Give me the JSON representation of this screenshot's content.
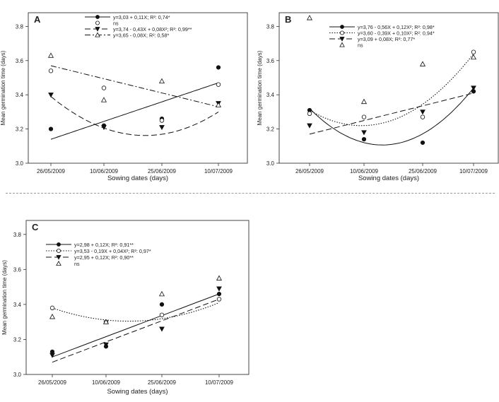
{
  "figure": {
    "separator": "dashed-line"
  },
  "chart_data": [
    {
      "id": "A",
      "type": "scatter",
      "panel_label": "A",
      "xlabel": "Sowing dates (days)",
      "ylabel": "Mean germination time  (days)",
      "categories": [
        "26/05/2009",
        "10/06/2009",
        "25/06/2009",
        "10/07/2009"
      ],
      "yticks": [
        "3.0",
        "3.2",
        "3.4",
        "3.6",
        "3.8"
      ],
      "ylim": [
        3.0,
        3.88
      ],
      "grid": false,
      "legend_position": "top",
      "series": [
        {
          "marker": "filled-circle",
          "line": "solid",
          "legend_label": "y=3,03 + 0,11X; R²: 0,74*",
          "values": [
            3.2,
            3.22,
            3.26,
            3.56
          ],
          "fit": {
            "form": "poly",
            "coef": [
              3.03,
              0.11
            ]
          }
        },
        {
          "marker": "open-circle",
          "line": "none",
          "legend_label": "ns",
          "values": [
            3.54,
            3.44,
            3.25,
            3.46
          ]
        },
        {
          "marker": "filled-triangle-down",
          "line": "dashed",
          "legend_label": "y=3,74 - 0,43X + 0,08X²; R²: 0,99**",
          "values": [
            3.4,
            3.21,
            3.21,
            3.35
          ],
          "fit": {
            "form": "poly",
            "coef": [
              3.74,
              -0.43,
              0.08
            ]
          }
        },
        {
          "marker": "open-triangle-up",
          "line": "dash-dot",
          "legend_label": "y=3,65 - 0,08X; R²: 0,58*",
          "values": [
            3.63,
            3.37,
            3.48,
            3.34
          ],
          "fit": {
            "form": "poly",
            "coef": [
              3.65,
              -0.08
            ]
          }
        }
      ]
    },
    {
      "id": "B",
      "type": "scatter",
      "panel_label": "B",
      "xlabel": "Sowing dates (days)",
      "ylabel": "Mean germination time  (days)",
      "categories": [
        "26/05/2009",
        "10/06/2009",
        "25/06/2009",
        "10/07/2009"
      ],
      "yticks": [
        "3.0",
        "3.2",
        "3.4",
        "3.6",
        "3.8"
      ],
      "ylim": [
        3.0,
        3.88
      ],
      "grid": false,
      "legend_position": "top",
      "series": [
        {
          "marker": "filled-circle",
          "line": "solid",
          "legend_label": "y=3,76 - 0,56X + 0,12X²; R²: 0,98*",
          "values": [
            3.31,
            3.14,
            3.12,
            3.42
          ],
          "fit": {
            "form": "poly",
            "coef": [
              3.76,
              -0.56,
              0.12
            ]
          }
        },
        {
          "marker": "open-circle",
          "line": "dotted",
          "legend_label": "y=3,60 - 0,39X + 0,10X²; R²: 0,94*",
          "values": [
            3.29,
            3.27,
            3.27,
            3.65
          ],
          "fit": {
            "form": "poly",
            "coef": [
              3.6,
              -0.39,
              0.1
            ]
          }
        },
        {
          "marker": "filled-triangle-down",
          "line": "dashed",
          "legend_label": "y=3,09 + 0,08X; R²: 0,77*",
          "values": [
            3.22,
            3.18,
            3.3,
            3.44
          ],
          "fit": {
            "form": "poly",
            "coef": [
              3.09,
              0.08
            ]
          }
        },
        {
          "marker": "open-triangle-up",
          "line": "none",
          "legend_label": "ns",
          "values": [
            3.85,
            3.36,
            3.58,
            3.62
          ]
        }
      ]
    },
    {
      "id": "C",
      "type": "scatter",
      "panel_label": "C",
      "xlabel": "Sowing dates (days)",
      "ylabel": "Mean germination time  (days)",
      "categories": [
        "26/05/2009",
        "10/06/2009",
        "25/06/2009",
        "10/07/2009"
      ],
      "yticks": [
        "3.0",
        "3.2",
        "3.4",
        "3.6",
        "3.8"
      ],
      "ylim": [
        3.0,
        3.88
      ],
      "grid": false,
      "legend_position": "top-left",
      "series": [
        {
          "marker": "filled-circle",
          "line": "solid",
          "legend_label": "y=2,98 + 0,12X; R²: 0,91**",
          "values": [
            3.13,
            3.16,
            3.4,
            3.46
          ],
          "fit": {
            "form": "poly",
            "coef": [
              2.98,
              0.12
            ]
          }
        },
        {
          "marker": "open-circle",
          "line": "dotted",
          "legend_label": "y=3,53 - 0,19X + 0,04X²; R²: 0,97*",
          "values": [
            3.38,
            3.3,
            3.34,
            3.43
          ],
          "fit": {
            "form": "poly",
            "coef": [
              3.53,
              -0.19,
              0.04
            ]
          }
        },
        {
          "marker": "filled-triangle-down",
          "line": "dashed",
          "legend_label": "y=2,95 + 0,12X; R²: 0,90**",
          "values": [
            3.11,
            3.17,
            3.26,
            3.49
          ],
          "fit": {
            "form": "poly",
            "coef": [
              2.95,
              0.12
            ]
          }
        },
        {
          "marker": "open-triangle-up",
          "line": "none",
          "legend_label": "ns",
          "values": [
            3.33,
            3.3,
            3.46,
            3.55
          ]
        }
      ]
    }
  ]
}
